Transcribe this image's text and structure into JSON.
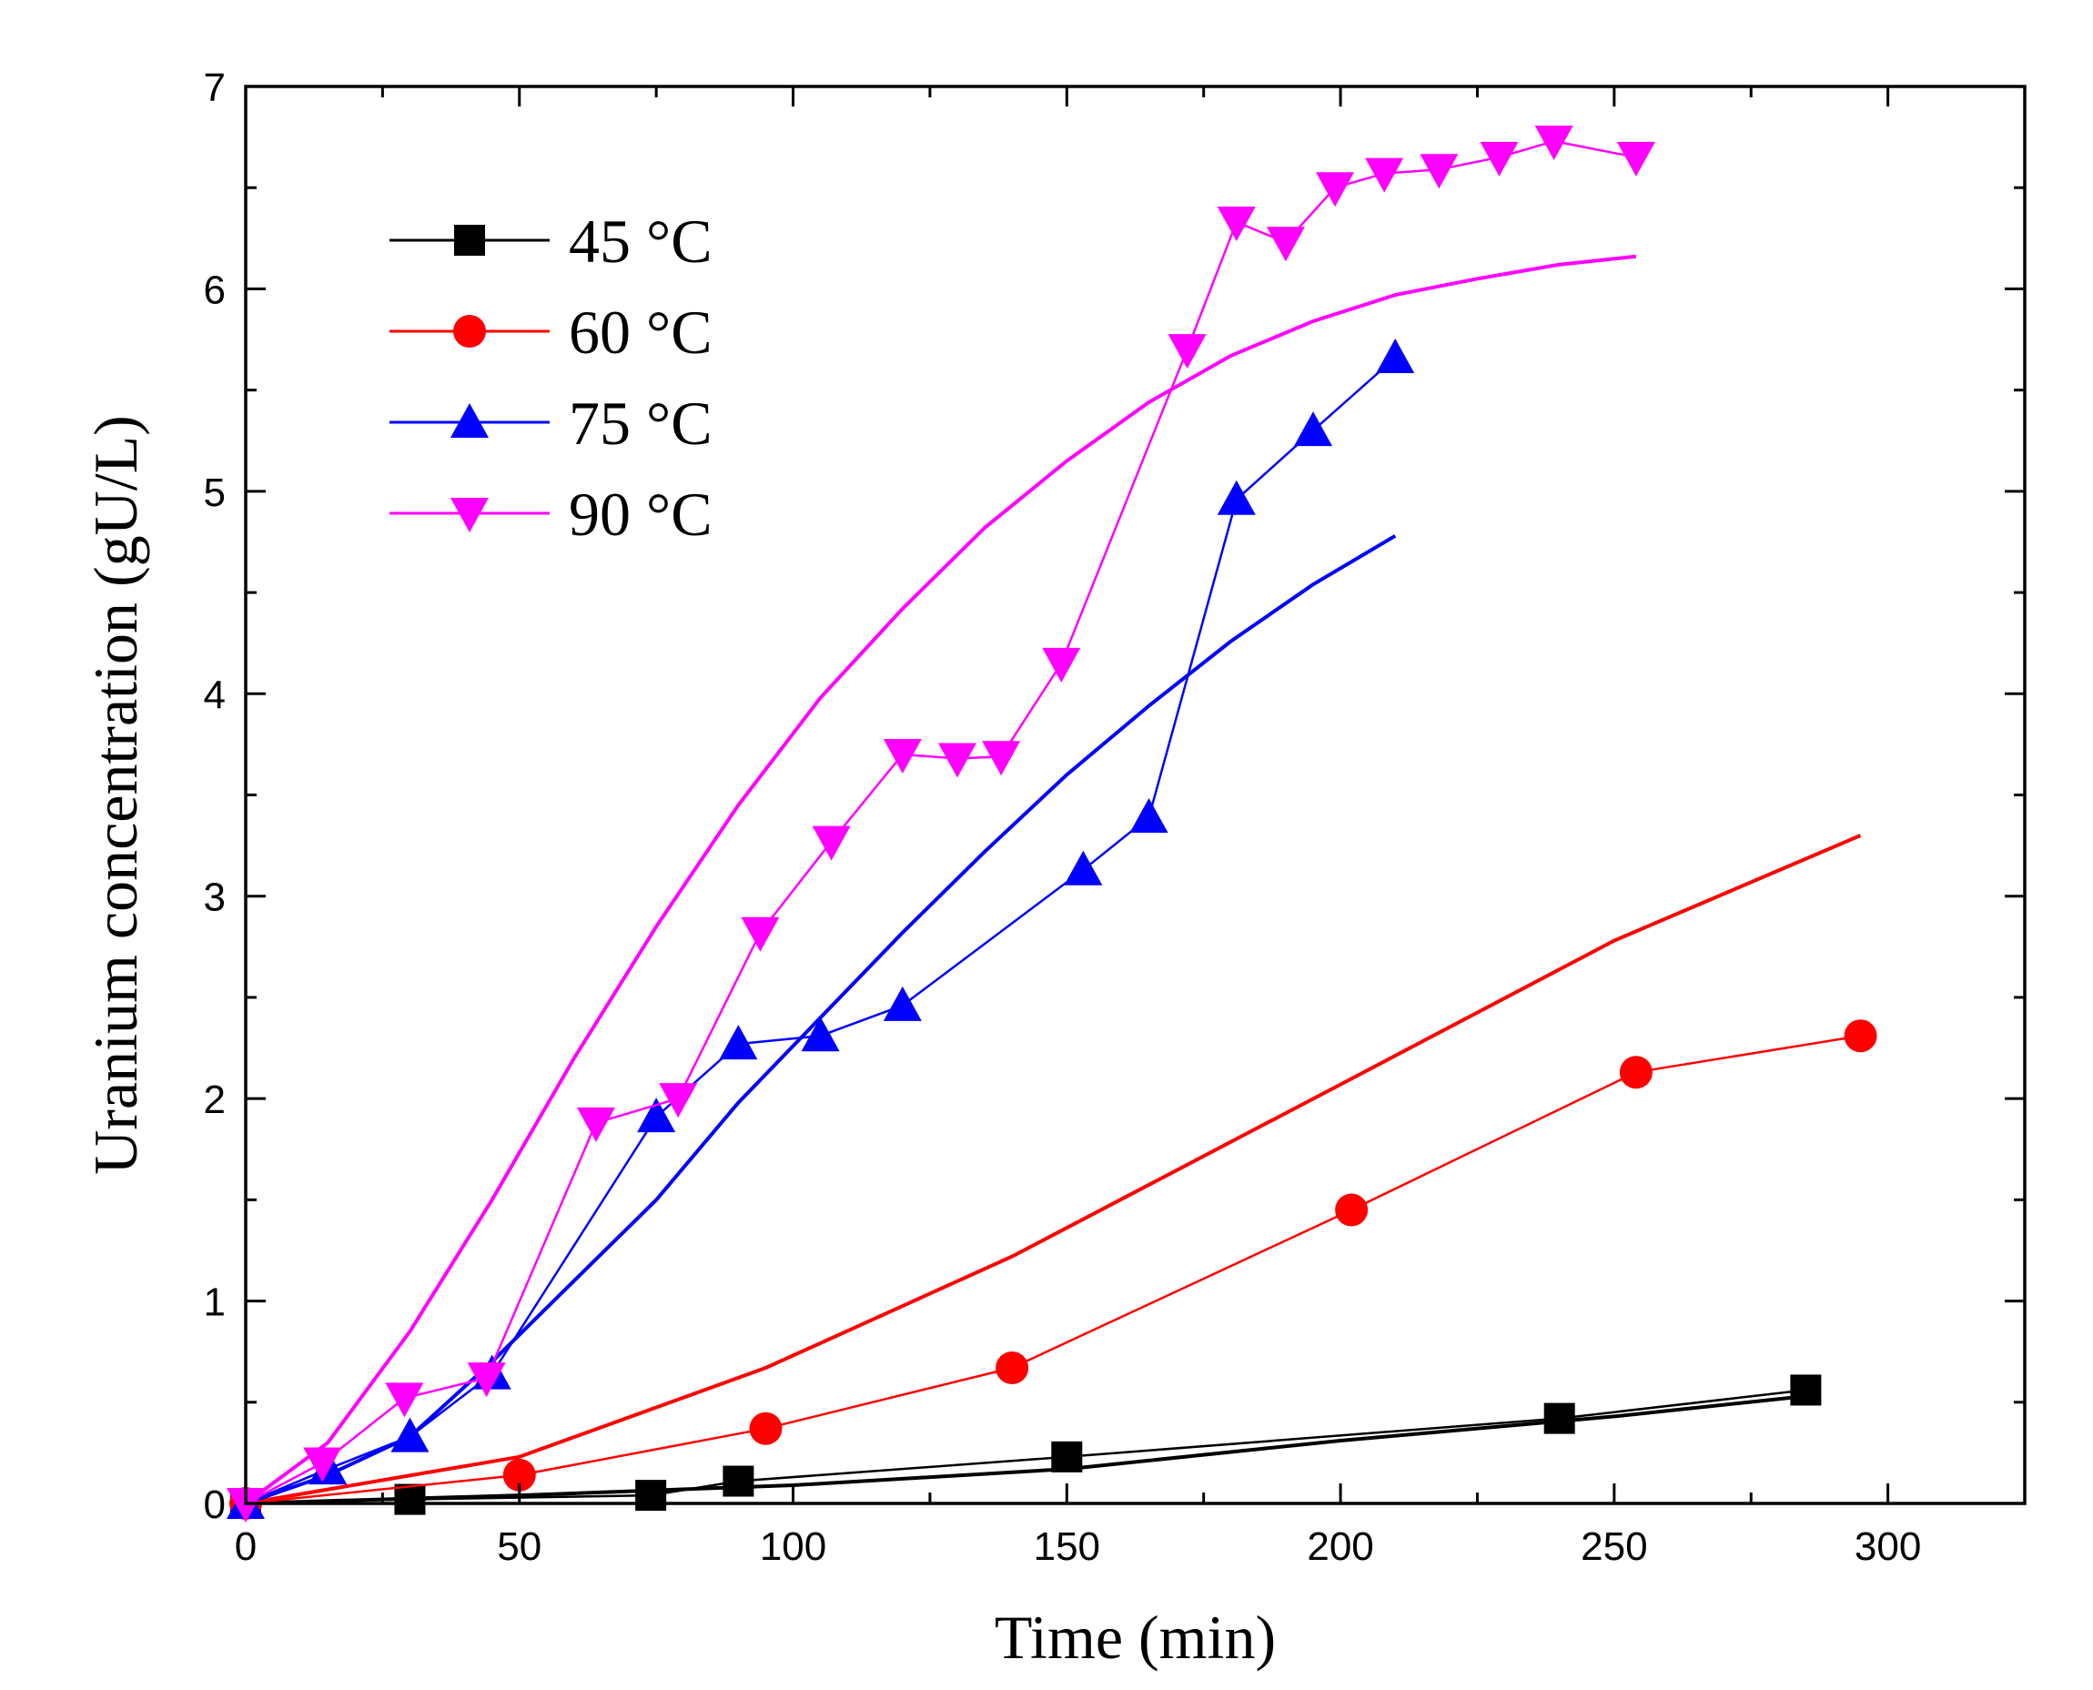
{
  "chart_data": {
    "type": "line",
    "title": "",
    "xlabel": "Time (min)",
    "ylabel": "Uranium concentration (gU/L)",
    "xlim": [
      0,
      325
    ],
    "ylim": [
      0,
      7
    ],
    "xticks": [
      0,
      50,
      100,
      150,
      200,
      250,
      300
    ],
    "yticks": [
      0,
      1,
      2,
      3,
      4,
      5,
      6,
      7
    ],
    "grid": false,
    "legend_position": "top-left",
    "series": [
      {
        "name": "45 °C",
        "color": "#000000",
        "marker": "square",
        "x": [
          0,
          30,
          74,
          90,
          150,
          240,
          285
        ],
        "y": [
          0,
          0.02,
          0.04,
          0.11,
          0.23,
          0.42,
          0.56
        ],
        "fit": {
          "x": [
            0,
            50,
            100,
            150,
            200,
            250,
            285
          ],
          "y": [
            0,
            0.04,
            0.09,
            0.17,
            0.31,
            0.43,
            0.53
          ]
        }
      },
      {
        "name": "60 °C",
        "color": "#ff0000",
        "marker": "circle",
        "x": [
          0,
          50,
          95,
          140,
          202,
          254,
          295
        ],
        "y": [
          0,
          0.14,
          0.37,
          0.67,
          1.45,
          2.13,
          2.31
        ],
        "fit": {
          "x": [
            0,
            50,
            95,
            140,
            200,
            250,
            295
          ],
          "y": [
            0,
            0.23,
            0.67,
            1.22,
            2.07,
            2.78,
            3.3
          ]
        }
      },
      {
        "name": "75 °C",
        "color": "#0000ff",
        "marker": "triangle-up",
        "x": [
          0,
          15,
          30,
          45,
          75,
          90,
          105,
          120,
          153,
          165,
          181,
          195,
          210
        ],
        "y": [
          0,
          0.17,
          0.33,
          0.64,
          1.91,
          2.27,
          2.31,
          2.46,
          3.13,
          3.39,
          4.96,
          5.3,
          5.66
        ],
        "fit": {
          "x": [
            0,
            15,
            30,
            45,
            60,
            75,
            90,
            105,
            120,
            135,
            150,
            165,
            180,
            195,
            210
          ],
          "y": [
            0,
            0.14,
            0.33,
            0.7,
            1.1,
            1.5,
            1.98,
            2.4,
            2.82,
            3.22,
            3.6,
            3.94,
            4.26,
            4.54,
            4.78
          ]
        }
      },
      {
        "name": "90 °C",
        "color": "#ff00ff",
        "marker": "triangle-down",
        "x": [
          0,
          14,
          29,
          44,
          64,
          79,
          94,
          107,
          120,
          130,
          138,
          149,
          172,
          181,
          190,
          199,
          208,
          218,
          229,
          239,
          254
        ],
        "y": [
          0,
          0.2,
          0.52,
          0.62,
          1.88,
          2.0,
          2.82,
          3.27,
          3.7,
          3.68,
          3.69,
          4.15,
          5.7,
          6.33,
          6.23,
          6.5,
          6.57,
          6.59,
          6.65,
          6.73,
          6.65
        ]
      }
    ],
    "fit_curve_90": {
      "x": [
        0,
        15,
        30,
        45,
        60,
        75,
        90,
        105,
        120,
        135,
        150,
        165,
        180,
        195,
        210,
        225,
        240,
        254
      ],
      "y": [
        0,
        0.3,
        0.85,
        1.5,
        2.2,
        2.85,
        3.45,
        3.98,
        4.42,
        4.82,
        5.15,
        5.44,
        5.67,
        5.84,
        5.97,
        6.05,
        6.12,
        6.16
      ]
    }
  }
}
